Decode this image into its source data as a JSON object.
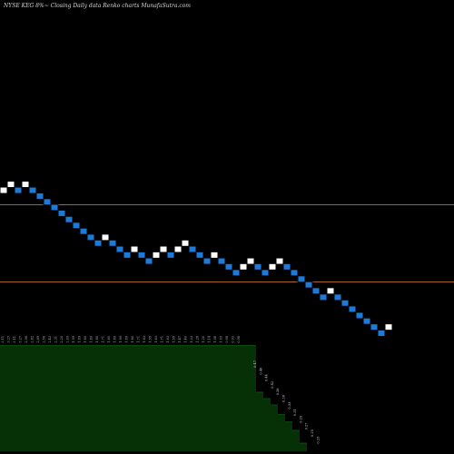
{
  "chart_data": {
    "type": "renko",
    "title": "NYSE KEG 8%~  Closing Daily data  Renko  charts MunafaSutra.com",
    "colors": {
      "background": "#000000",
      "up_brick": "#ffffff",
      "down_brick": "#1c7bd9",
      "brick_border": "#000000",
      "reference_line": "#a8632a",
      "volume_fill": "#063006",
      "volume_top": "#0a4a0a"
    },
    "reference_lines": [
      2.76,
      1.44
    ],
    "bricks": [
      {
        "level": 3.11,
        "dir": "up"
      },
      {
        "level": 3.27,
        "dir": "up"
      },
      {
        "level": 3.11,
        "dir": "down"
      },
      {
        "level": 3.27,
        "dir": "up"
      },
      {
        "level": 3.11,
        "dir": "down"
      },
      {
        "level": 2.96,
        "dir": "down"
      },
      {
        "level": 2.82,
        "dir": "down"
      },
      {
        "level": 2.69,
        "dir": "down"
      },
      {
        "level": 2.56,
        "dir": "down"
      },
      {
        "level": 2.43,
        "dir": "down"
      },
      {
        "level": 2.31,
        "dir": "down"
      },
      {
        "level": 2.2,
        "dir": "down"
      },
      {
        "level": 2.09,
        "dir": "down"
      },
      {
        "level": 1.99,
        "dir": "down"
      },
      {
        "level": 2.09,
        "dir": "up"
      },
      {
        "level": 1.99,
        "dir": "down"
      },
      {
        "level": 1.89,
        "dir": "down"
      },
      {
        "level": 1.8,
        "dir": "down"
      },
      {
        "level": 1.89,
        "dir": "up"
      },
      {
        "level": 1.8,
        "dir": "down"
      },
      {
        "level": 1.71,
        "dir": "down"
      },
      {
        "level": 1.8,
        "dir": "up"
      },
      {
        "level": 1.89,
        "dir": "up"
      },
      {
        "level": 1.8,
        "dir": "down"
      },
      {
        "level": 1.89,
        "dir": "up"
      },
      {
        "level": 1.99,
        "dir": "up"
      },
      {
        "level": 1.89,
        "dir": "down"
      },
      {
        "level": 1.8,
        "dir": "down"
      },
      {
        "level": 1.71,
        "dir": "down"
      },
      {
        "level": 1.8,
        "dir": "up"
      },
      {
        "level": 1.71,
        "dir": "down"
      },
      {
        "level": 1.63,
        "dir": "down"
      },
      {
        "level": 1.55,
        "dir": "down"
      },
      {
        "level": 1.63,
        "dir": "up"
      },
      {
        "level": 1.71,
        "dir": "up"
      },
      {
        "level": 1.63,
        "dir": "down"
      },
      {
        "level": 1.55,
        "dir": "down"
      },
      {
        "level": 1.63,
        "dir": "up"
      },
      {
        "level": 1.71,
        "dir": "up"
      },
      {
        "level": 1.63,
        "dir": "down"
      },
      {
        "level": 1.55,
        "dir": "down"
      },
      {
        "level": 1.47,
        "dir": "down"
      },
      {
        "level": 1.4,
        "dir": "down"
      },
      {
        "level": 1.33,
        "dir": "down"
      },
      {
        "level": 1.26,
        "dir": "down"
      },
      {
        "level": 1.33,
        "dir": "up"
      },
      {
        "level": 1.26,
        "dir": "down"
      },
      {
        "level": 1.2,
        "dir": "down"
      },
      {
        "level": 1.14,
        "dir": "down"
      },
      {
        "level": 1.08,
        "dir": "down"
      },
      {
        "level": 1.03,
        "dir": "down"
      },
      {
        "level": 0.98,
        "dir": "down"
      },
      {
        "level": 0.93,
        "dir": "down"
      },
      {
        "level": 0.98,
        "dir": "up"
      }
    ],
    "price_labels": [
      "3.11",
      "3.27",
      "3.11",
      "3.27",
      "2.96",
      "2.82",
      "2.69",
      "2.56",
      "2.43",
      "2.31",
      "2.20",
      "2.09",
      "1.99",
      "1.89",
      "1.80",
      "1.89",
      "1.80",
      "1.71",
      "1.80",
      "1.89",
      "1.99",
      "1.89",
      "1.80",
      "1.71",
      "1.63",
      "1.55",
      "1.63",
      "1.71",
      "1.63",
      "1.55",
      "1.47",
      "1.40",
      "1.33",
      "1.26",
      "1.20",
      "1.14",
      "1.08",
      "1.03",
      "0.98",
      "0.93",
      "0.98"
    ],
    "volume_labels": [
      "0.47",
      "0.46",
      "0.44",
      "0.42",
      "0.38",
      "0.36",
      "0.33",
      "0.31",
      "0.29",
      "0.27",
      "0.25",
      "0.23"
    ],
    "volume_steps": [
      {
        "bricks": 47,
        "relative_height": 1.0
      },
      {
        "bricks": 1,
        "relative_height": 0.56
      },
      {
        "bricks": 1,
        "relative_height": 0.5
      },
      {
        "bricks": 1,
        "relative_height": 0.44
      },
      {
        "bricks": 1,
        "relative_height": 0.35
      },
      {
        "bricks": 1,
        "relative_height": 0.28
      },
      {
        "bricks": 1,
        "relative_height": 0.2
      },
      {
        "bricks": 1,
        "relative_height": 0.08
      }
    ]
  }
}
